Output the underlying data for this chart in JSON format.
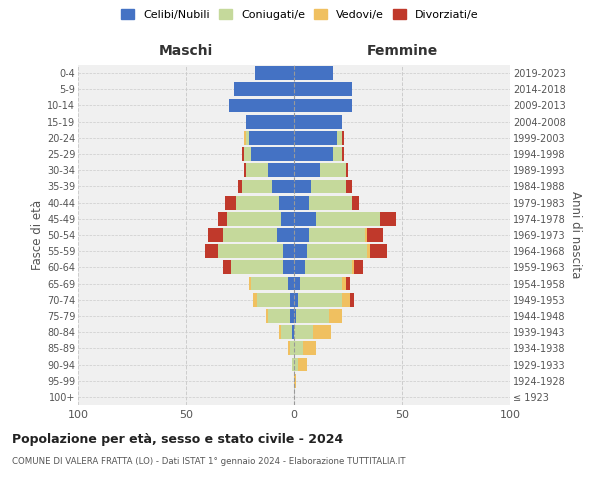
{
  "age_groups": [
    "100+",
    "95-99",
    "90-94",
    "85-89",
    "80-84",
    "75-79",
    "70-74",
    "65-69",
    "60-64",
    "55-59",
    "50-54",
    "45-49",
    "40-44",
    "35-39",
    "30-34",
    "25-29",
    "20-24",
    "15-19",
    "10-14",
    "5-9",
    "0-4"
  ],
  "birth_years": [
    "≤ 1923",
    "1924-1928",
    "1929-1933",
    "1934-1938",
    "1939-1943",
    "1944-1948",
    "1949-1953",
    "1954-1958",
    "1959-1963",
    "1964-1968",
    "1969-1973",
    "1974-1978",
    "1979-1983",
    "1984-1988",
    "1989-1993",
    "1994-1998",
    "1999-2003",
    "2004-2008",
    "2009-2013",
    "2014-2018",
    "2019-2023"
  ],
  "males": {
    "celibi": [
      0,
      0,
      0,
      0,
      1,
      2,
      2,
      3,
      5,
      5,
      8,
      6,
      7,
      10,
      12,
      20,
      21,
      22,
      30,
      28,
      18
    ],
    "coniugati": [
      0,
      0,
      1,
      2,
      5,
      10,
      15,
      17,
      24,
      30,
      25,
      25,
      20,
      14,
      10,
      3,
      1,
      0,
      0,
      0,
      0
    ],
    "vedovi": [
      0,
      0,
      0,
      1,
      1,
      1,
      2,
      1,
      0,
      0,
      0,
      0,
      0,
      0,
      0,
      0,
      1,
      0,
      0,
      0,
      0
    ],
    "divorziati": [
      0,
      0,
      0,
      0,
      0,
      0,
      0,
      0,
      4,
      6,
      7,
      4,
      5,
      2,
      1,
      1,
      0,
      0,
      0,
      0,
      0
    ]
  },
  "females": {
    "nubili": [
      0,
      0,
      0,
      0,
      0,
      1,
      2,
      3,
      5,
      6,
      7,
      10,
      7,
      8,
      12,
      18,
      20,
      22,
      27,
      27,
      18
    ],
    "coniugate": [
      0,
      0,
      2,
      4,
      9,
      15,
      20,
      19,
      22,
      28,
      26,
      30,
      20,
      16,
      12,
      4,
      2,
      0,
      0,
      0,
      0
    ],
    "vedove": [
      0,
      1,
      4,
      6,
      8,
      6,
      4,
      2,
      1,
      1,
      1,
      0,
      0,
      0,
      0,
      0,
      0,
      0,
      0,
      0,
      0
    ],
    "divorziate": [
      0,
      0,
      0,
      0,
      0,
      0,
      2,
      2,
      4,
      8,
      7,
      7,
      3,
      3,
      1,
      1,
      1,
      0,
      0,
      0,
      0
    ]
  },
  "colors": {
    "celibi_nubili": "#4472c4",
    "coniugati": "#c5d99b",
    "vedovi": "#f0c060",
    "divorziati": "#c0392b"
  },
  "xlim": [
    -100,
    100
  ],
  "xticks": [
    -100,
    -50,
    0,
    50,
    100
  ],
  "xticklabels": [
    "100",
    "50",
    "0",
    "50",
    "100"
  ],
  "title": "Popolazione per età, sesso e stato civile - 2024",
  "subtitle": "COMUNE DI VALERA FRATTA (LO) - Dati ISTAT 1° gennaio 2024 - Elaborazione TUTTITALIA.IT",
  "ylabel_left": "Fasce di età",
  "ylabel_right": "Anni di nascita",
  "legend_labels": [
    "Celibi/Nubili",
    "Coniugati/e",
    "Vedovi/e",
    "Divorziati/e"
  ],
  "maschi_label": "Maschi",
  "femmine_label": "Femmine",
  "bg_color": "#ffffff",
  "plot_bg_color": "#f0f0f0",
  "grid_color": "#cccccc"
}
